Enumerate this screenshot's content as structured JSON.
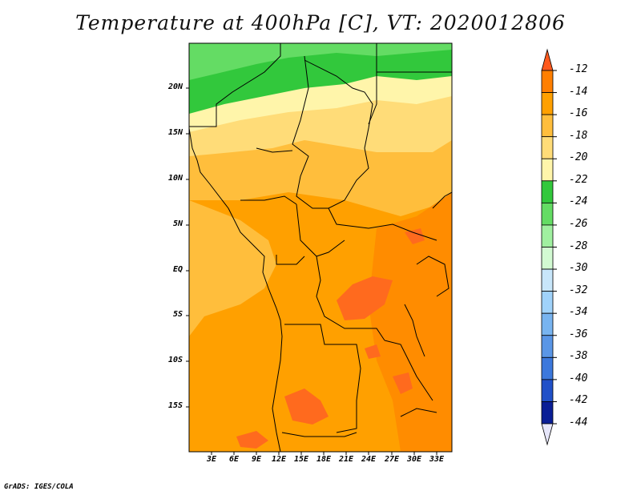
{
  "title": "Temperature at 400hPa [C], VT: 2020012806",
  "footer": "GrADS: IGES/COLA",
  "map": {
    "lat_labels": [
      "20N",
      "15N",
      "10N",
      "5N",
      "EQ",
      "5S",
      "10S",
      "15S"
    ],
    "lon_labels": [
      "3E",
      "6E",
      "9E",
      "12E",
      "15E",
      "18E",
      "21E",
      "24E",
      "27E",
      "30E",
      "33E"
    ],
    "lat_range": [
      -19.5,
      24.5
    ],
    "lon_range": [
      0,
      35
    ]
  },
  "colorbar": {
    "labels": [
      "-12",
      "-14",
      "-16",
      "-18",
      "-20",
      "-22",
      "-24",
      "-26",
      "-28",
      "-30",
      "-32",
      "-34",
      "-36",
      "-38",
      "-40",
      "-42",
      "-44"
    ],
    "colors": [
      "#ff5a1e",
      "#ff7f00",
      "#ffa000",
      "#ffbe3c",
      "#ffdc78",
      "#fff5aa",
      "#32c83c",
      "#64dc64",
      "#a0f0a0",
      "#d2fad2",
      "#c8e6fa",
      "#a0d2fa",
      "#78b4f0",
      "#5a96e6",
      "#3c78dc",
      "#2050c8",
      "#0a1e96",
      "#000a64"
    ],
    "top_triangle_color": "#ff5a1e",
    "bottom_triangle_color": "#e6e6fa"
  }
}
